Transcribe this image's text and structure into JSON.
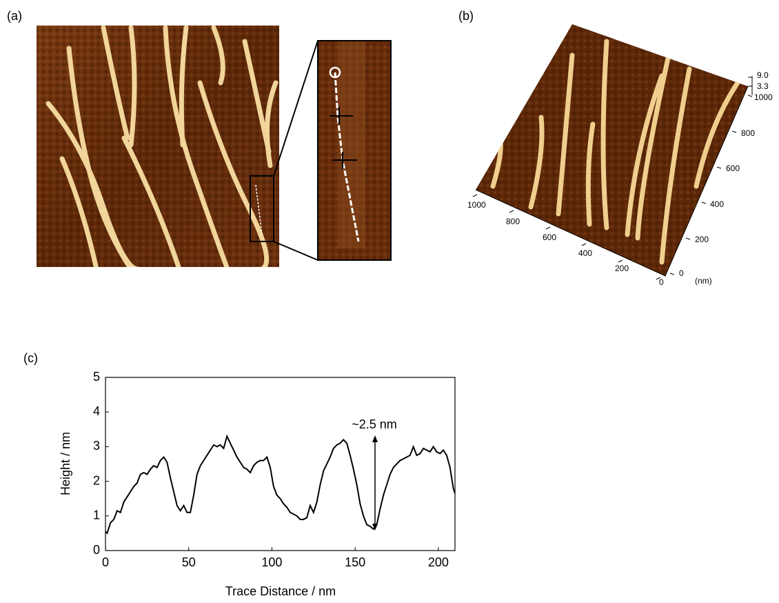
{
  "panel_labels": [
    "(a)",
    "(b)",
    "(c)"
  ],
  "surface_plot": {
    "z_ticks": [
      "9.0",
      "3.3"
    ],
    "right_axis_ticks": [
      "1000",
      "800",
      "600",
      "400",
      "200",
      "0"
    ],
    "front_axis_ticks": [
      "1000",
      "800",
      "600",
      "400",
      "200",
      "0"
    ],
    "unit": "(nm)"
  },
  "chart_data": {
    "type": "line",
    "x_label": "Trace Distance / nm",
    "y_label": "Height / nm",
    "annotation": "~2.5 nm",
    "xlim": [
      0,
      210
    ],
    "ylim": [
      0,
      5
    ],
    "xticks": [
      0,
      50,
      100,
      150,
      200
    ],
    "yticks": [
      0,
      1,
      2,
      3,
      4,
      5
    ],
    "x": [
      0,
      1,
      3,
      5,
      7,
      9,
      11,
      13,
      15,
      17,
      19,
      21,
      23,
      25,
      27,
      29,
      31,
      33,
      35,
      37,
      39,
      41,
      43,
      45,
      47,
      49,
      51,
      53,
      55,
      57,
      59,
      61,
      63,
      65,
      67,
      69,
      71,
      73,
      75,
      77,
      79,
      81,
      83,
      85,
      87,
      89,
      91,
      93,
      95,
      97,
      99,
      101,
      103,
      105,
      107,
      109,
      111,
      113,
      115,
      117,
      119,
      121,
      123,
      125,
      127,
      129,
      131,
      133,
      135,
      137,
      139,
      141,
      143,
      145,
      147,
      149,
      151,
      153,
      155,
      157,
      159,
      161,
      163,
      165,
      167,
      169,
      171,
      173,
      175,
      177,
      179,
      181,
      183,
      185,
      187,
      189,
      191,
      193,
      195,
      197,
      199,
      201,
      203,
      205,
      207,
      209,
      210
    ],
    "series": [
      {
        "color": "#000000",
        "values": [
          0.55,
          0.5,
          0.8,
          0.9,
          1.15,
          1.1,
          1.4,
          1.55,
          1.7,
          1.85,
          1.95,
          2.2,
          2.25,
          2.2,
          2.35,
          2.45,
          2.4,
          2.6,
          2.7,
          2.55,
          2.1,
          1.7,
          1.3,
          1.15,
          1.3,
          1.1,
          1.1,
          1.6,
          2.2,
          2.45,
          2.6,
          2.75,
          2.9,
          3.05,
          3.0,
          3.05,
          2.95,
          3.3,
          3.1,
          2.9,
          2.7,
          2.55,
          2.4,
          2.35,
          2.25,
          2.45,
          2.55,
          2.6,
          2.6,
          2.7,
          2.4,
          1.85,
          1.6,
          1.5,
          1.35,
          1.25,
          1.1,
          1.05,
          1.0,
          0.9,
          0.9,
          0.95,
          1.3,
          1.1,
          1.4,
          1.9,
          2.3,
          2.5,
          2.7,
          2.95,
          3.05,
          3.1,
          3.2,
          3.1,
          2.75,
          2.35,
          1.9,
          1.35,
          1.0,
          0.75,
          0.7,
          0.62,
          0.75,
          1.2,
          1.6,
          1.9,
          2.2,
          2.4,
          2.5,
          2.6,
          2.65,
          2.7,
          2.75,
          3.0,
          2.75,
          2.8,
          2.95,
          2.9,
          2.85,
          3.0,
          2.85,
          2.8,
          2.9,
          2.75,
          2.4,
          1.8,
          1.65
        ]
      }
    ]
  }
}
